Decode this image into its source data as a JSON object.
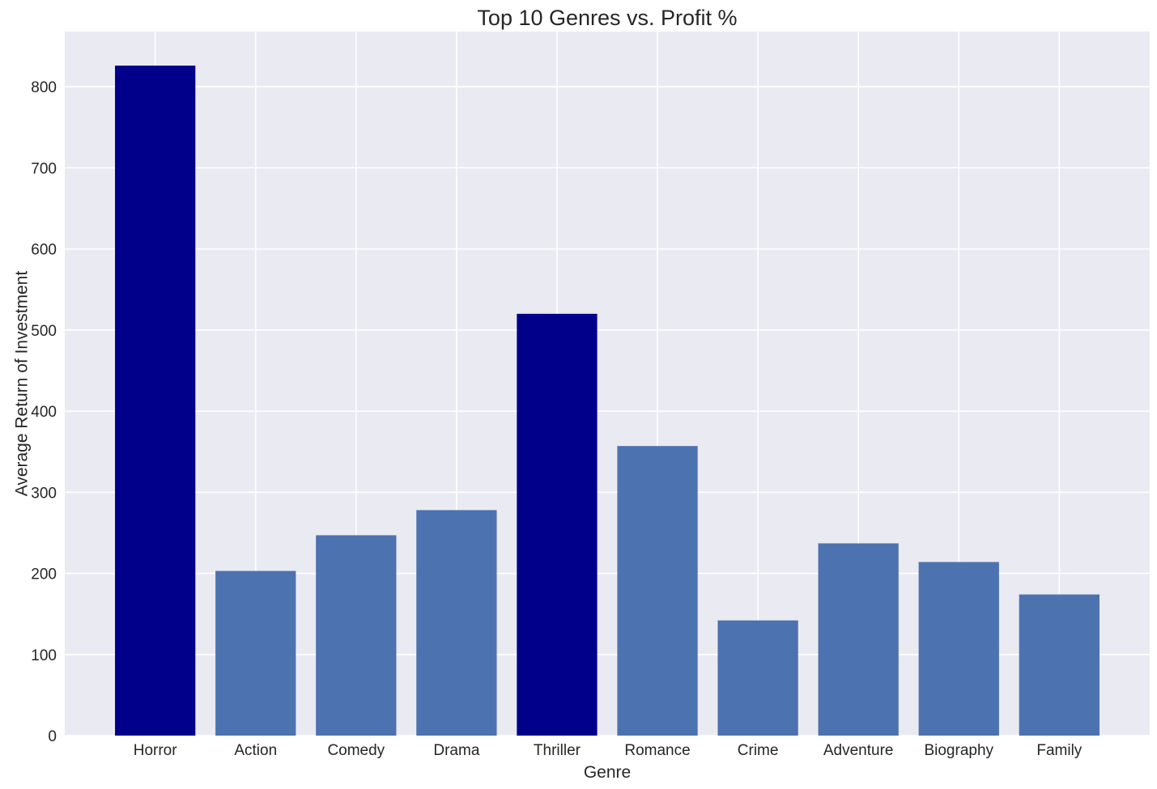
{
  "chart_data": {
    "type": "bar",
    "title": "Top 10 Genres vs. Profit %",
    "xlabel": "Genre",
    "ylabel": "Average Return of Investment",
    "categories": [
      "Horror",
      "Action",
      "Comedy",
      "Drama",
      "Thriller",
      "Romance",
      "Crime",
      "Adventure",
      "Biography",
      "Family"
    ],
    "values": [
      826,
      203,
      247,
      278,
      520,
      357,
      142,
      237,
      214,
      174
    ],
    "highlighted": [
      "Horror",
      "Thriller"
    ],
    "ylim": [
      0,
      868
    ],
    "yticks": [
      0,
      100,
      200,
      300,
      400,
      500,
      600,
      700,
      800
    ],
    "grid": true,
    "legend": "none",
    "colors": {
      "bar": "#4c72b0",
      "highlight": "#00008b",
      "plot_background": "#eaeaf2",
      "grid": "#ffffff",
      "text": "#262626"
    }
  }
}
